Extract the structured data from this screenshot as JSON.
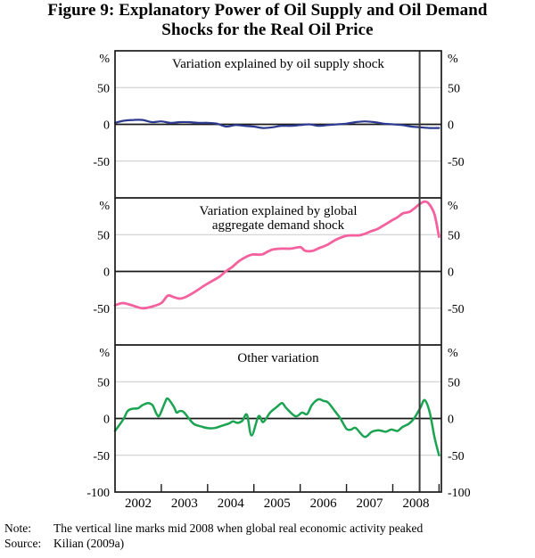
{
  "title": {
    "line1": "Figure 9: Explanatory Power of Oil Supply and Oil Demand",
    "line2": "Shocks for the Real Oil Price"
  },
  "note": {
    "label": "Note:",
    "text": "The vertical line marks mid 2008 when global real economic activity peaked"
  },
  "source": {
    "label": "Source:",
    "text": "Kilian (2009a)"
  },
  "chart_data": {
    "type": "line",
    "title": "Figure 9: Explanatory Power of Oil Supply and Oil Demand Shocks for the Real Oil Price",
    "x_range": [
      2002,
      2009.05
    ],
    "x_tick_years": [
      2003,
      2004,
      2005,
      2006,
      2007,
      2008,
      2009
    ],
    "x_labels": [
      "2002",
      "2003",
      "2004",
      "2005",
      "2006",
      "2007",
      "2008"
    ],
    "y_unit_label": "%",
    "bottom_y_label": "-100",
    "grid_color": "#c9c9c9",
    "axis_color": "#1a1a1a",
    "vline": {
      "x": 2008.58,
      "color": "#3d3d3d"
    },
    "panels": [
      {
        "panel_title_lines": [
          "Variation explained by oil supply shock"
        ],
        "ylim": [
          -100,
          100
        ],
        "y_tick_values": [
          50,
          0,
          -50
        ],
        "y_tick_labels": [
          "50",
          "0",
          "-50"
        ],
        "series": {
          "name": "oil-supply-shock",
          "color": "#2b3a90",
          "width": 2.2,
          "points": [
            [
              2002.0,
              2
            ],
            [
              2002.2,
              5
            ],
            [
              2002.4,
              6
            ],
            [
              2002.6,
              6
            ],
            [
              2002.8,
              3
            ],
            [
              2003.0,
              4
            ],
            [
              2003.2,
              2
            ],
            [
              2003.4,
              3
            ],
            [
              2003.6,
              3
            ],
            [
              2003.8,
              2
            ],
            [
              2004.0,
              2
            ],
            [
              2004.2,
              1
            ],
            [
              2004.4,
              -3
            ],
            [
              2004.6,
              -1
            ],
            [
              2004.8,
              -2
            ],
            [
              2005.0,
              -3
            ],
            [
              2005.2,
              -5
            ],
            [
              2005.4,
              -4
            ],
            [
              2005.6,
              -2
            ],
            [
              2005.8,
              -2
            ],
            [
              2006.0,
              -1
            ],
            [
              2006.2,
              0
            ],
            [
              2006.4,
              -2
            ],
            [
              2006.6,
              -1
            ],
            [
              2006.8,
              0
            ],
            [
              2007.0,
              1
            ],
            [
              2007.2,
              3
            ],
            [
              2007.4,
              4
            ],
            [
              2007.6,
              3
            ],
            [
              2007.8,
              1
            ],
            [
              2008.0,
              0
            ],
            [
              2008.2,
              -1
            ],
            [
              2008.4,
              -3
            ],
            [
              2008.6,
              -4
            ],
            [
              2008.8,
              -5
            ],
            [
              2009.0,
              -5
            ]
          ]
        }
      },
      {
        "panel_title_lines": [
          "Variation explained by global",
          "aggregate demand shock"
        ],
        "ylim": [
          -100,
          100
        ],
        "y_tick_values": [
          50,
          0,
          -50
        ],
        "y_tick_labels": [
          "50",
          "0",
          "-50"
        ],
        "series": {
          "name": "global-aggregate-demand-shock",
          "color": "#f4619e",
          "width": 2.8,
          "points": [
            [
              2002.0,
              -46
            ],
            [
              2002.17,
              -43
            ],
            [
              2002.36,
              -46
            ],
            [
              2002.59,
              -50
            ],
            [
              2002.79,
              -48
            ],
            [
              2003.0,
              -43
            ],
            [
              2003.14,
              -33
            ],
            [
              2003.27,
              -35
            ],
            [
              2003.39,
              -37
            ],
            [
              2003.52,
              -35
            ],
            [
              2003.72,
              -28
            ],
            [
              2003.91,
              -20
            ],
            [
              2004.1,
              -13
            ],
            [
              2004.26,
              -7
            ],
            [
              2004.39,
              0
            ],
            [
              2004.53,
              6
            ],
            [
              2004.68,
              14
            ],
            [
              2004.84,
              20
            ],
            [
              2004.97,
              23
            ],
            [
              2005.17,
              23
            ],
            [
              2005.3,
              27
            ],
            [
              2005.42,
              30
            ],
            [
              2005.61,
              31
            ],
            [
              2005.8,
              31
            ],
            [
              2006.0,
              33
            ],
            [
              2006.11,
              28
            ],
            [
              2006.27,
              28
            ],
            [
              2006.42,
              32
            ],
            [
              2006.58,
              36
            ],
            [
              2006.77,
              43
            ],
            [
              2006.97,
              48
            ],
            [
              2007.1,
              49
            ],
            [
              2007.26,
              49
            ],
            [
              2007.39,
              51
            ],
            [
              2007.55,
              55
            ],
            [
              2007.68,
              58
            ],
            [
              2007.84,
              64
            ],
            [
              2007.97,
              69
            ],
            [
              2008.11,
              74
            ],
            [
              2008.22,
              79
            ],
            [
              2008.36,
              81
            ],
            [
              2008.47,
              86
            ],
            [
              2008.59,
              92
            ],
            [
              2008.69,
              95
            ],
            [
              2008.78,
              92
            ],
            [
              2008.9,
              78
            ],
            [
              2009.0,
              47
            ]
          ]
        }
      },
      {
        "panel_title_lines": [
          "Other variation"
        ],
        "ylim": [
          -100,
          100
        ],
        "y_tick_values": [
          50,
          0,
          -50
        ],
        "y_tick_labels": [
          "50",
          "0",
          "-50"
        ],
        "series": {
          "name": "other-variation",
          "color": "#1aa351",
          "width": 2.5,
          "points": [
            [
              2002.0,
              -17
            ],
            [
              2002.08,
              -10
            ],
            [
              2002.19,
              0
            ],
            [
              2002.27,
              10
            ],
            [
              2002.36,
              13
            ],
            [
              2002.5,
              14
            ],
            [
              2002.59,
              18
            ],
            [
              2002.71,
              21
            ],
            [
              2002.81,
              18
            ],
            [
              2002.9,
              6
            ],
            [
              2002.96,
              4
            ],
            [
              2003.08,
              22
            ],
            [
              2003.14,
              27
            ],
            [
              2003.27,
              16
            ],
            [
              2003.33,
              8
            ],
            [
              2003.39,
              10
            ],
            [
              2003.48,
              9
            ],
            [
              2003.62,
              -2
            ],
            [
              2003.72,
              -8
            ],
            [
              2003.87,
              -11
            ],
            [
              2004.0,
              -13
            ],
            [
              2004.15,
              -13
            ],
            [
              2004.3,
              -10
            ],
            [
              2004.45,
              -7
            ],
            [
              2004.55,
              -4
            ],
            [
              2004.65,
              -6
            ],
            [
              2004.75,
              -3
            ],
            [
              2004.85,
              5
            ],
            [
              2004.95,
              -23
            ],
            [
              2005.1,
              3
            ],
            [
              2005.2,
              -5
            ],
            [
              2005.35,
              8
            ],
            [
              2005.5,
              16
            ],
            [
              2005.61,
              21
            ],
            [
              2005.7,
              14
            ],
            [
              2005.9,
              3
            ],
            [
              2006.04,
              8
            ],
            [
              2006.15,
              6
            ],
            [
              2006.25,
              18
            ],
            [
              2006.39,
              26
            ],
            [
              2006.5,
              24
            ],
            [
              2006.6,
              22
            ],
            [
              2006.75,
              10
            ],
            [
              2006.87,
              0
            ],
            [
              2007.0,
              -14
            ],
            [
              2007.1,
              -15
            ],
            [
              2007.2,
              -13
            ],
            [
              2007.39,
              -25
            ],
            [
              2007.55,
              -18
            ],
            [
              2007.7,
              -16
            ],
            [
              2007.85,
              -18
            ],
            [
              2007.97,
              -15
            ],
            [
              2008.1,
              -17
            ],
            [
              2008.2,
              -12
            ],
            [
              2008.35,
              -7
            ],
            [
              2008.46,
              0
            ],
            [
              2008.6,
              15
            ],
            [
              2008.69,
              25
            ],
            [
              2008.8,
              8
            ],
            [
              2008.9,
              -25
            ],
            [
              2009.0,
              -50
            ]
          ]
        }
      }
    ]
  }
}
